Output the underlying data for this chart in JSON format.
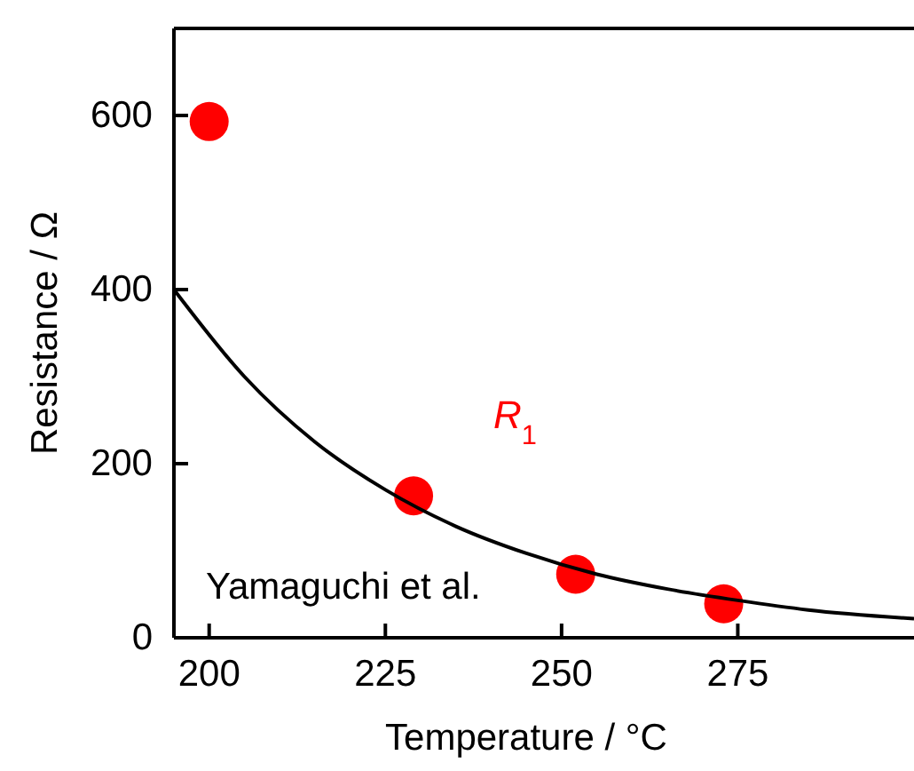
{
  "chart_data": {
    "type": "scatter",
    "xlabel": "Temperature / °C",
    "ylabel": "Resistance / Ω",
    "xlim": [
      195,
      300
    ],
    "ylim": [
      0,
      700
    ],
    "xticks": [
      200,
      225,
      250,
      275
    ],
    "yticks": [
      0,
      200,
      400,
      600
    ],
    "grid": false,
    "legend": false,
    "annotations": [
      "Yamaguchi et al."
    ],
    "series": [
      {
        "name": "R$_{1}$",
        "color": "#ff0000",
        "marker": "circle",
        "x": [
          200,
          229,
          252,
          273
        ],
        "values": [
          593,
          163,
          73,
          39
        ]
      },
      {
        "type": "line",
        "color": "#000000",
        "line_style": "solid",
        "marker": "none",
        "x": [
          195,
          205,
          215,
          225,
          235,
          245,
          255,
          265,
          275,
          285,
          300
        ],
        "values": [
          400,
          300,
          225,
          170,
          128,
          97,
          73,
          56,
          43,
          32,
          22
        ]
      }
    ]
  }
}
